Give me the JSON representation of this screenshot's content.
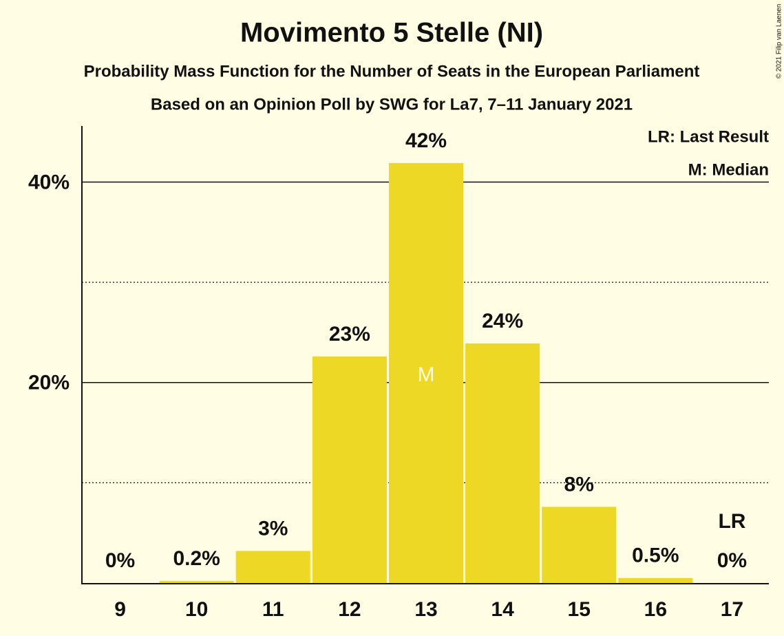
{
  "chart_data": {
    "type": "bar",
    "title": "Movimento 5 Stelle (NI)",
    "subtitle": "Probability Mass Function for the Number of Seats in the European Parliament",
    "caption": "Based on an Opinion Poll by SWG for La7, 7–11 January 2021",
    "categories": [
      "9",
      "10",
      "11",
      "12",
      "13",
      "14",
      "15",
      "16",
      "17"
    ],
    "values": [
      0,
      0.2,
      3.2,
      22.6,
      41.9,
      23.9,
      7.6,
      0.5,
      0
    ],
    "value_labels": [
      "0%",
      "0.2%",
      "3%",
      "23%",
      "42%",
      "24%",
      "8%",
      "0.5%",
      "0%"
    ],
    "color": "#EDD925",
    "ylim": [
      0,
      45.6
    ],
    "yticks": [
      {
        "value": 20,
        "label": "20%"
      },
      {
        "value": 40,
        "label": "40%"
      }
    ],
    "minor_yticks": [
      10,
      30
    ],
    "legend": [
      "LR: Last Result",
      "M: Median"
    ],
    "median": {
      "label": "M",
      "category": "13"
    },
    "last_result": {
      "label": "LR",
      "category": "17"
    },
    "copyright": "© 2021 Filip van Laenen"
  }
}
